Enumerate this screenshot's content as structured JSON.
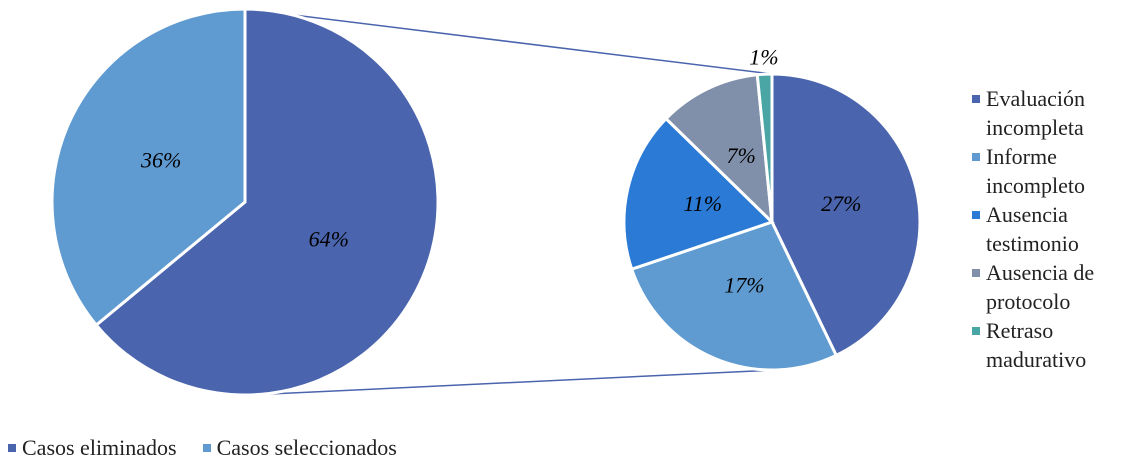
{
  "chart_data": [
    {
      "type": "pie",
      "categories": [
        "Casos eliminados",
        "Casos seleccionados"
      ],
      "values": [
        64,
        36
      ],
      "value_labels": [
        "64%",
        "36%"
      ],
      "colors": [
        "#4a64ad",
        "#5f9bd1"
      ],
      "legend": "bottom"
    },
    {
      "type": "pie",
      "categories": [
        "Evaluación incompleta",
        "Informe incompleto",
        "Ausencia testimonio",
        "Ausencia de protocolo",
        "Retraso madurativo"
      ],
      "values": [
        27,
        17,
        11,
        7,
        1
      ],
      "value_labels": [
        "27%",
        "17%",
        "11%",
        "7%",
        "1%"
      ],
      "colors": [
        "#4a64ad",
        "#5f9bd1",
        "#2b7bd6",
        "#8090aa",
        "#4aa5a5"
      ],
      "legend": "right"
    }
  ]
}
